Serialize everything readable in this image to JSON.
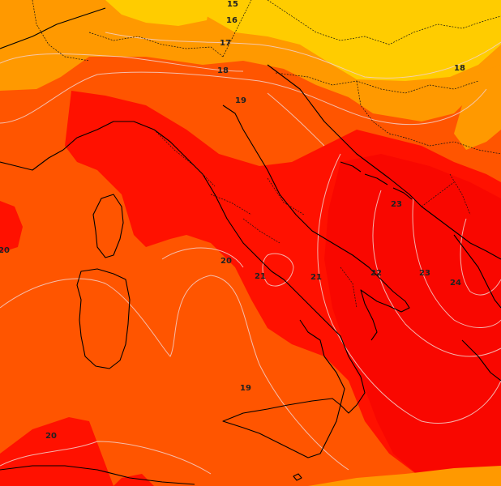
{
  "palette": {
    "band_15_16": "#ffcc00",
    "band_16_18": "#ff9900",
    "band_18_20": "#ff5500",
    "band_20_22": "#ff1100",
    "band_22_plus": "#f00000",
    "isoline": "#f3d0c8",
    "coastline": "#000000"
  },
  "isotherm_labels": [
    {
      "id": "15",
      "text": "15"
    },
    {
      "id": "16",
      "text": "16"
    },
    {
      "id": "17",
      "text": "17"
    },
    {
      "id": "18-north",
      "text": "18"
    },
    {
      "id": "18-east",
      "text": "18"
    },
    {
      "id": "19-north",
      "text": "19"
    },
    {
      "id": "19-south",
      "text": "19"
    },
    {
      "id": "20-west",
      "text": "20"
    },
    {
      "id": "20-coast",
      "text": "20"
    },
    {
      "id": "20-southwest",
      "text": "20"
    },
    {
      "id": "21-naples",
      "text": "21"
    },
    {
      "id": "21-south",
      "text": "21"
    },
    {
      "id": "22",
      "text": "22"
    },
    {
      "id": "23-north",
      "text": "23"
    },
    {
      "id": "23-south",
      "text": "23"
    },
    {
      "id": "24",
      "text": "24"
    }
  ]
}
